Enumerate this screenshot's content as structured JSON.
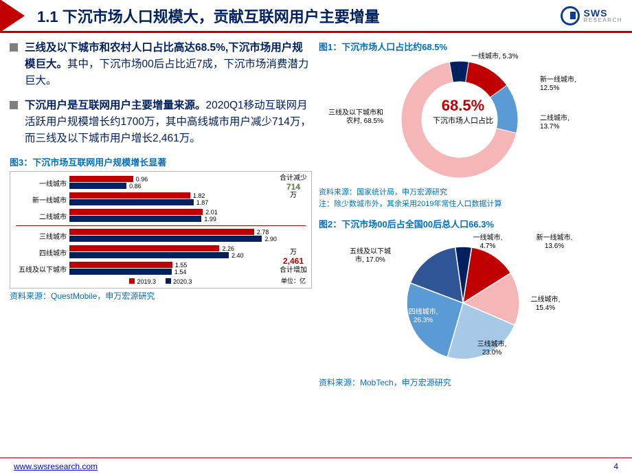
{
  "header": {
    "title": "1.1 下沉市场人口规模大，贡献互联网用户主要增量",
    "logo_main": "SWS",
    "logo_sub": "RESEARCH"
  },
  "bullets": [
    {
      "bold": "三线及以下城市和农村人口占比高达68.5%,下沉市场用户规模巨大。",
      "rest": "其中，下沉市场00后占比近7成，下沉市场消费潜力巨大。"
    },
    {
      "bold": "下沉用户是互联网用户主要增量来源。",
      "rest": "2020Q1移动互联网月活跃用户规模增长约1700万，其中高线城市用户减少714万，而三线及以下城市用户增长2,461万。"
    }
  ],
  "chart1": {
    "title": "图1：下沉市场人口占比约68.5%",
    "center_pct": "68.5%",
    "center_label": "下沉市场人口占比",
    "segments": [
      {
        "label": "一线城市, 5.3%",
        "value": 5.3,
        "color": "#002060"
      },
      {
        "label": "新一线城市, 12.5%",
        "value": 12.5,
        "color": "#c00000"
      },
      {
        "label": "二线城市, 13.7%",
        "value": 13.7,
        "color": "#5b9bd5"
      },
      {
        "label": "三线及以下城市和农村, 68.5%",
        "value": 68.5,
        "color": "#f4b6b6"
      }
    ],
    "source": "资料来源：国家统计局，申万宏源研究",
    "note": "注：除少数城市外，其余采用2019年常住人口数据计算"
  },
  "chart2": {
    "title": "图2：下沉市场00后占全国00后总人口66.3%",
    "segments": [
      {
        "label": "一线城市, 4.7%",
        "value": 4.7,
        "color": "#002060"
      },
      {
        "label": "新一线城市, 13.6%",
        "value": 13.6,
        "color": "#c00000"
      },
      {
        "label": "二线城市, 15.4%",
        "value": 15.4,
        "color": "#f4b6b6"
      },
      {
        "label": "三线城市, 23.0%",
        "value": 23.0,
        "color": "#a6c9e8"
      },
      {
        "label": "四线城市, 26.3%",
        "value": 26.3,
        "color": "#5b9bd5"
      },
      {
        "label": "五线及以下城市, 17.0%",
        "value": 17.0,
        "color": "#2f5597"
      }
    ],
    "source": "资料来源：MobTech，申万宏源研究"
  },
  "chart3": {
    "title": "图3：下沉市场互联网用户规模增长显著",
    "categories": [
      "一线城市",
      "新一线城市",
      "二线城市",
      "三线城市",
      "四线城市",
      "五线及以下城市"
    ],
    "series": [
      {
        "name": "2019.3",
        "color": "#c00000",
        "values": [
          0.96,
          1.82,
          2.01,
          2.78,
          2.26,
          1.55
        ]
      },
      {
        "name": "2020.3",
        "color": "#002060",
        "values": [
          0.86,
          1.87,
          1.99,
          2.9,
          2.4,
          1.54
        ]
      }
    ],
    "max": 3.0,
    "top_note_l1": "合计减少",
    "top_note_l2": "714",
    "top_note_l3": "万",
    "bot_note_l1": "万",
    "bot_note_l2": "2,461",
    "bot_note_l3": "合计增加",
    "unit_label": "单位：亿",
    "source": "资料来源：QuestMobile，申万宏源研究"
  },
  "footer": {
    "link": "www.swsresearch.com",
    "page": "4"
  }
}
